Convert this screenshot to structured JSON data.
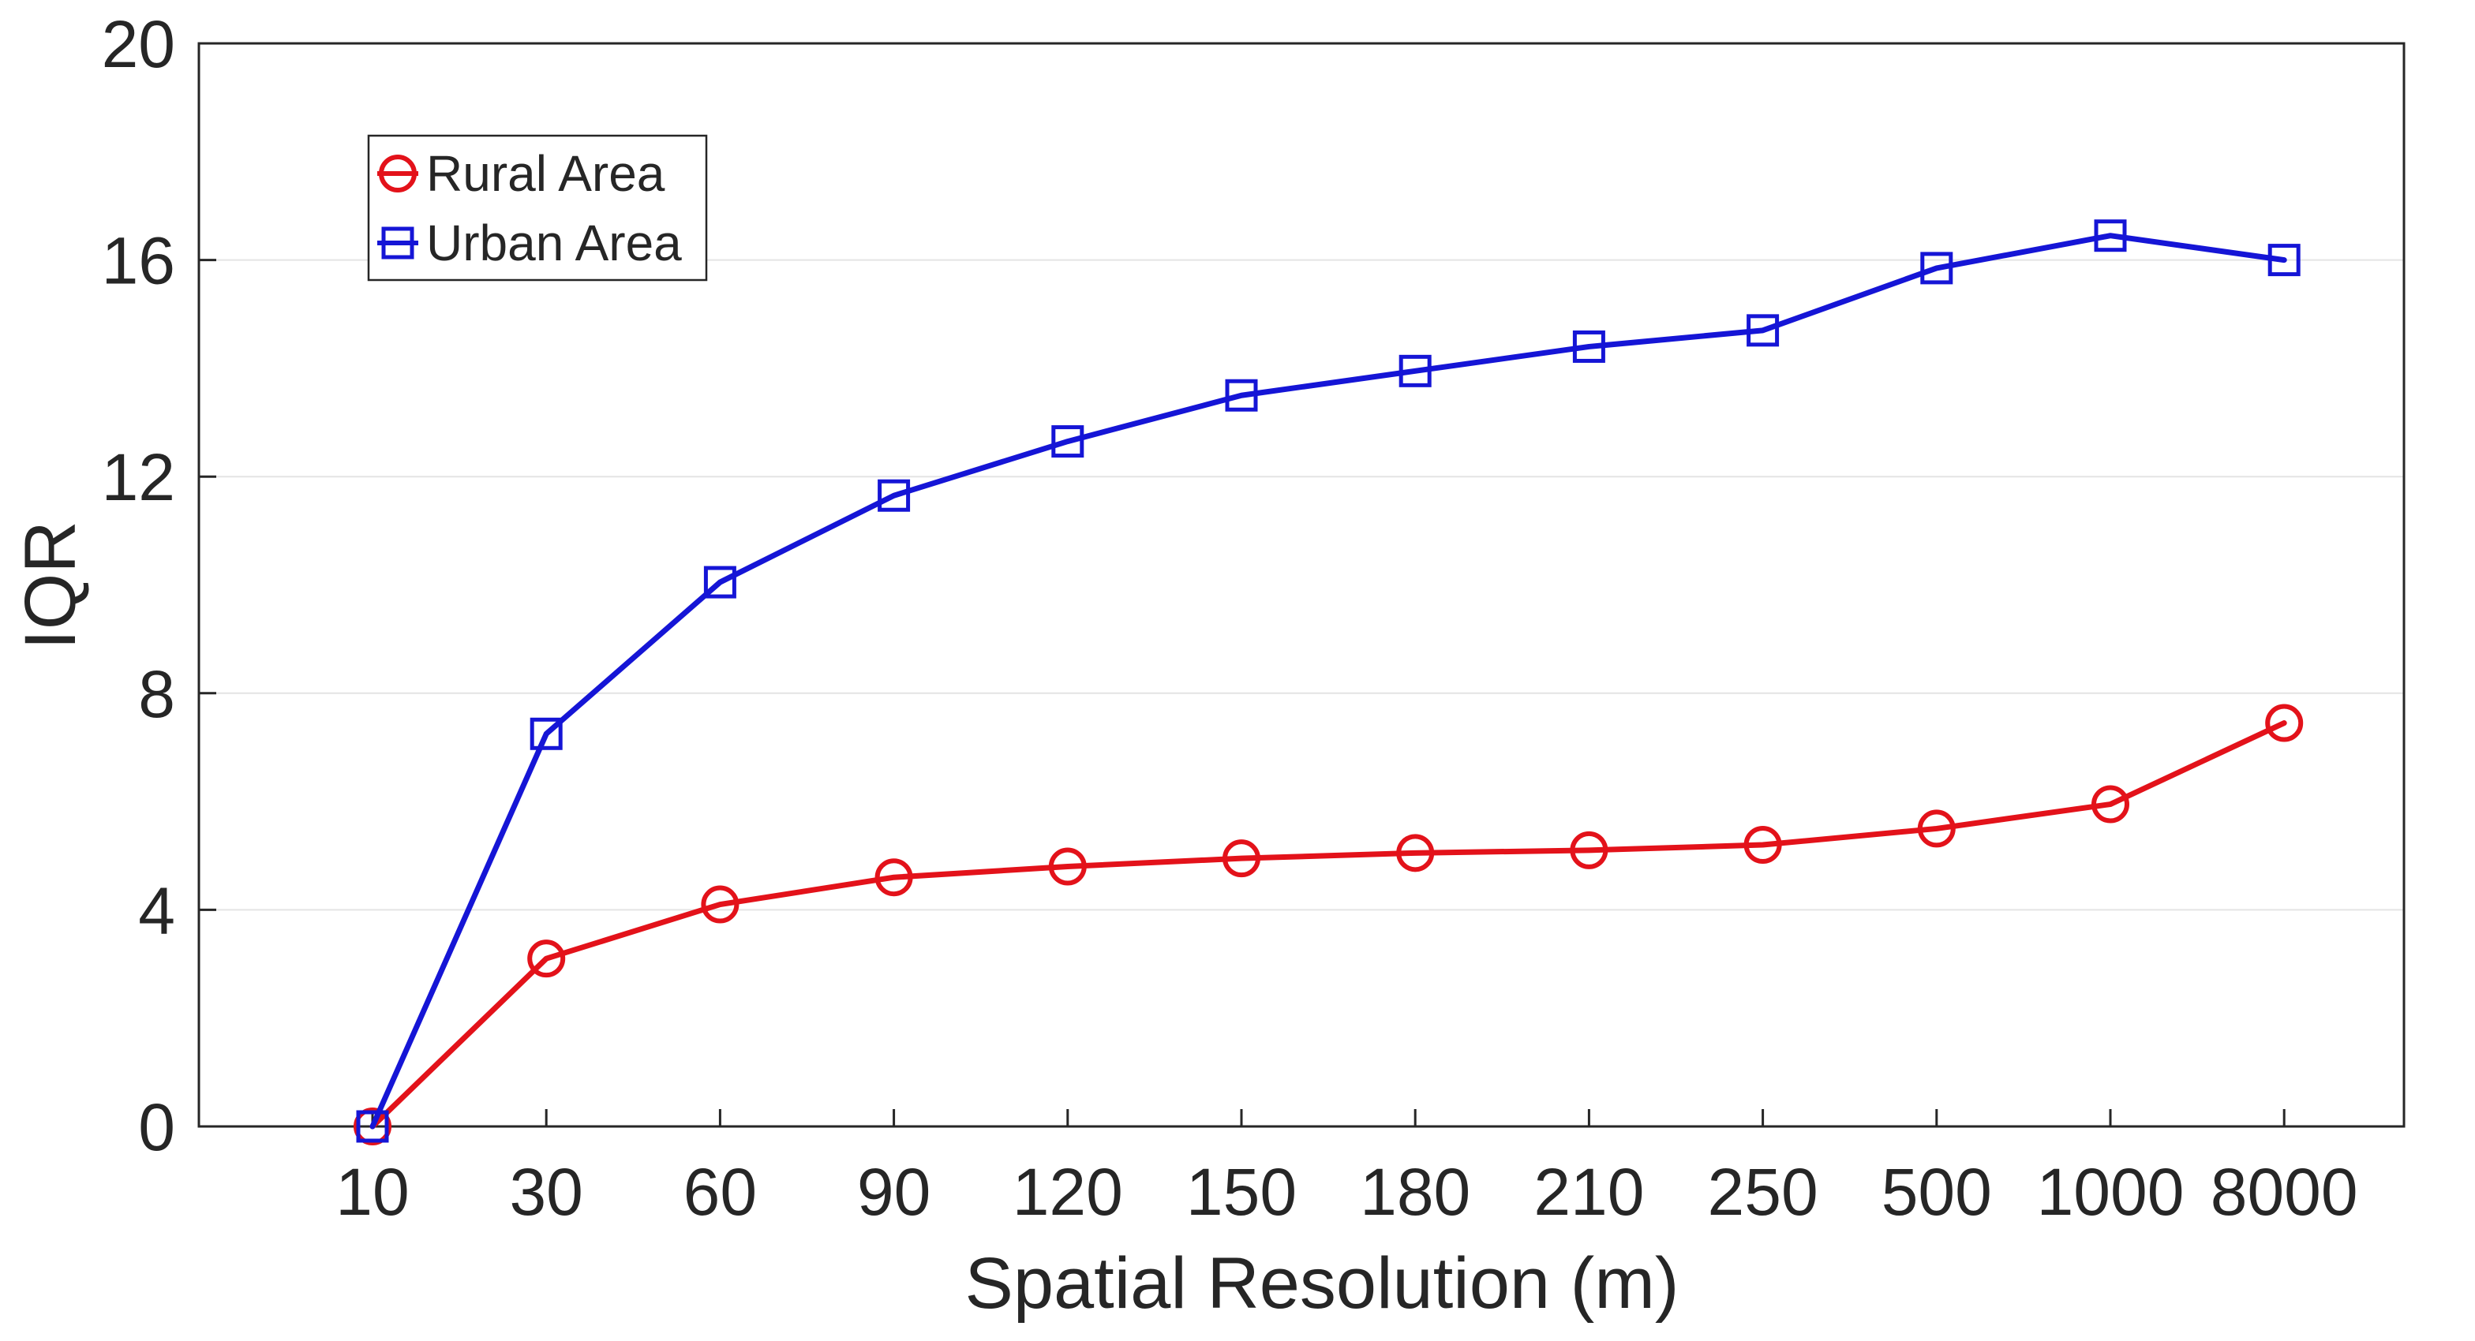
{
  "chart_data": {
    "type": "line",
    "title": "",
    "xlabel": "Spatial Resolution (m)",
    "ylabel": "IQR",
    "categories": [
      "10",
      "30",
      "60",
      "90",
      "120",
      "150",
      "180",
      "210",
      "250",
      "500",
      "1000",
      "8000"
    ],
    "ylim": [
      0,
      20
    ],
    "yticks": [
      "0",
      "4",
      "8",
      "12",
      "16",
      "20"
    ],
    "grid": "horizontal",
    "legend_position": "top-left",
    "series": [
      {
        "name": "Rural Area",
        "color": "#e3121a",
        "marker": "circle",
        "values": [
          0.0,
          3.1,
          4.1,
          4.6,
          4.8,
          4.95,
          5.05,
          5.1,
          5.2,
          5.5,
          5.95,
          7.45
        ]
      },
      {
        "name": "Urban Area",
        "color": "#1515d6",
        "marker": "square",
        "values": [
          0.0,
          7.25,
          10.05,
          11.65,
          12.65,
          13.5,
          13.95,
          14.4,
          14.7,
          15.85,
          16.45,
          16.0
        ]
      }
    ]
  }
}
